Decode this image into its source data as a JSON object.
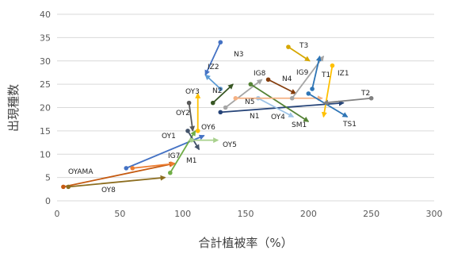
{
  "chart_data": {
    "type": "scatter",
    "title": "",
    "xlabel": "合計植被率（%）",
    "ylabel": "出現種数",
    "xlim": [
      0,
      300
    ],
    "ylim": [
      0,
      40
    ],
    "x_ticks": [
      "0",
      "50",
      "100",
      "150",
      "200",
      "250",
      "300"
    ],
    "y_ticks": [
      "0",
      "5",
      "10",
      "15",
      "20",
      "25",
      "30",
      "35",
      "40"
    ],
    "grid": "horizontal",
    "legend": "none",
    "style": "arrows from start point to end point",
    "series": [
      {
        "name": "OYAMA",
        "color": "#c55a11",
        "from": [
          5,
          3
        ],
        "to": [
          93,
          8
        ]
      },
      {
        "name": "OY8",
        "color": "#8c6d1f",
        "from": [
          9,
          3
        ],
        "to": [
          86,
          5
        ]
      },
      {
        "name": "OY1",
        "color": "#4472c4",
        "from": [
          55,
          7
        ],
        "to": [
          117,
          14
        ]
      },
      {
        "name": "IG7",
        "color": "#ed7d31",
        "from": [
          60,
          7
        ],
        "to": [
          94,
          8
        ]
      },
      {
        "name": "M1",
        "color": "#70ad47",
        "from": [
          90,
          6
        ],
        "to": [
          110,
          15
        ]
      },
      {
        "name": "OY6",
        "color": "#44546a",
        "from": [
          104,
          15
        ],
        "to": [
          113,
          11
        ]
      },
      {
        "name": "OY5",
        "color": "#a9d18e",
        "from": [
          107,
          13
        ],
        "to": [
          128,
          13
        ]
      },
      {
        "name": "OY2",
        "color": "#595959",
        "from": [
          105,
          21
        ],
        "to": [
          108,
          15
        ]
      },
      {
        "name": "OY3",
        "color": "#ffc000",
        "from": [
          112,
          15
        ],
        "to": [
          112,
          23
        ]
      },
      {
        "name": "IZ2",
        "color": "#5b9bd5",
        "from": [
          130,
          24
        ],
        "to": [
          118,
          27
        ]
      },
      {
        "name": "N3",
        "color": "#4472c4",
        "from": [
          130,
          34
        ],
        "to": [
          118,
          27
        ]
      },
      {
        "name": "N2",
        "color": "#375623",
        "from": [
          124,
          21
        ],
        "to": [
          140,
          25
        ]
      },
      {
        "name": "N5",
        "color": "#a5a5a5",
        "from": [
          134,
          20
        ],
        "to": [
          163,
          26
        ]
      },
      {
        "name": "N1",
        "color": "#264478",
        "from": [
          130,
          19
        ],
        "to": [
          228,
          21
        ]
      },
      {
        "name": "IG8",
        "color": "#548235",
        "from": [
          154,
          25
        ],
        "to": [
          200,
          17
        ]
      },
      {
        "name": "N4",
        "color": "#843c0c",
        "from": [
          168,
          26
        ],
        "to": [
          190,
          23
        ]
      },
      {
        "name": "OY4",
        "color": "#9dc3e6",
        "from": [
          160,
          22
        ],
        "to": [
          188,
          18
        ]
      },
      {
        "name": "SM1",
        "color": "#f4b183",
        "from": [
          142,
          22
        ],
        "to": [
          211,
          22
        ]
      },
      {
        "name": "IG9",
        "color": "#a5a5a5",
        "from": [
          187,
          22
        ],
        "to": [
          212,
          31
        ]
      },
      {
        "name": "T3",
        "color": "#d6a700",
        "from": [
          184,
          33
        ],
        "to": [
          201,
          30
        ]
      },
      {
        "name": "T1",
        "color": "#2e75b6",
        "from": [
          203,
          24
        ],
        "to": [
          209,
          31
        ]
      },
      {
        "name": "IZ1",
        "color": "#ffc000",
        "from": [
          219,
          29
        ],
        "to": [
          212,
          18
        ]
      },
      {
        "name": "TS1",
        "color": "#2e75b6",
        "from": [
          200,
          23
        ],
        "to": [
          231,
          18
        ]
      },
      {
        "name": "T2",
        "color": "#808080",
        "from": [
          250,
          22
        ],
        "to": [
          212,
          21
        ]
      }
    ]
  }
}
